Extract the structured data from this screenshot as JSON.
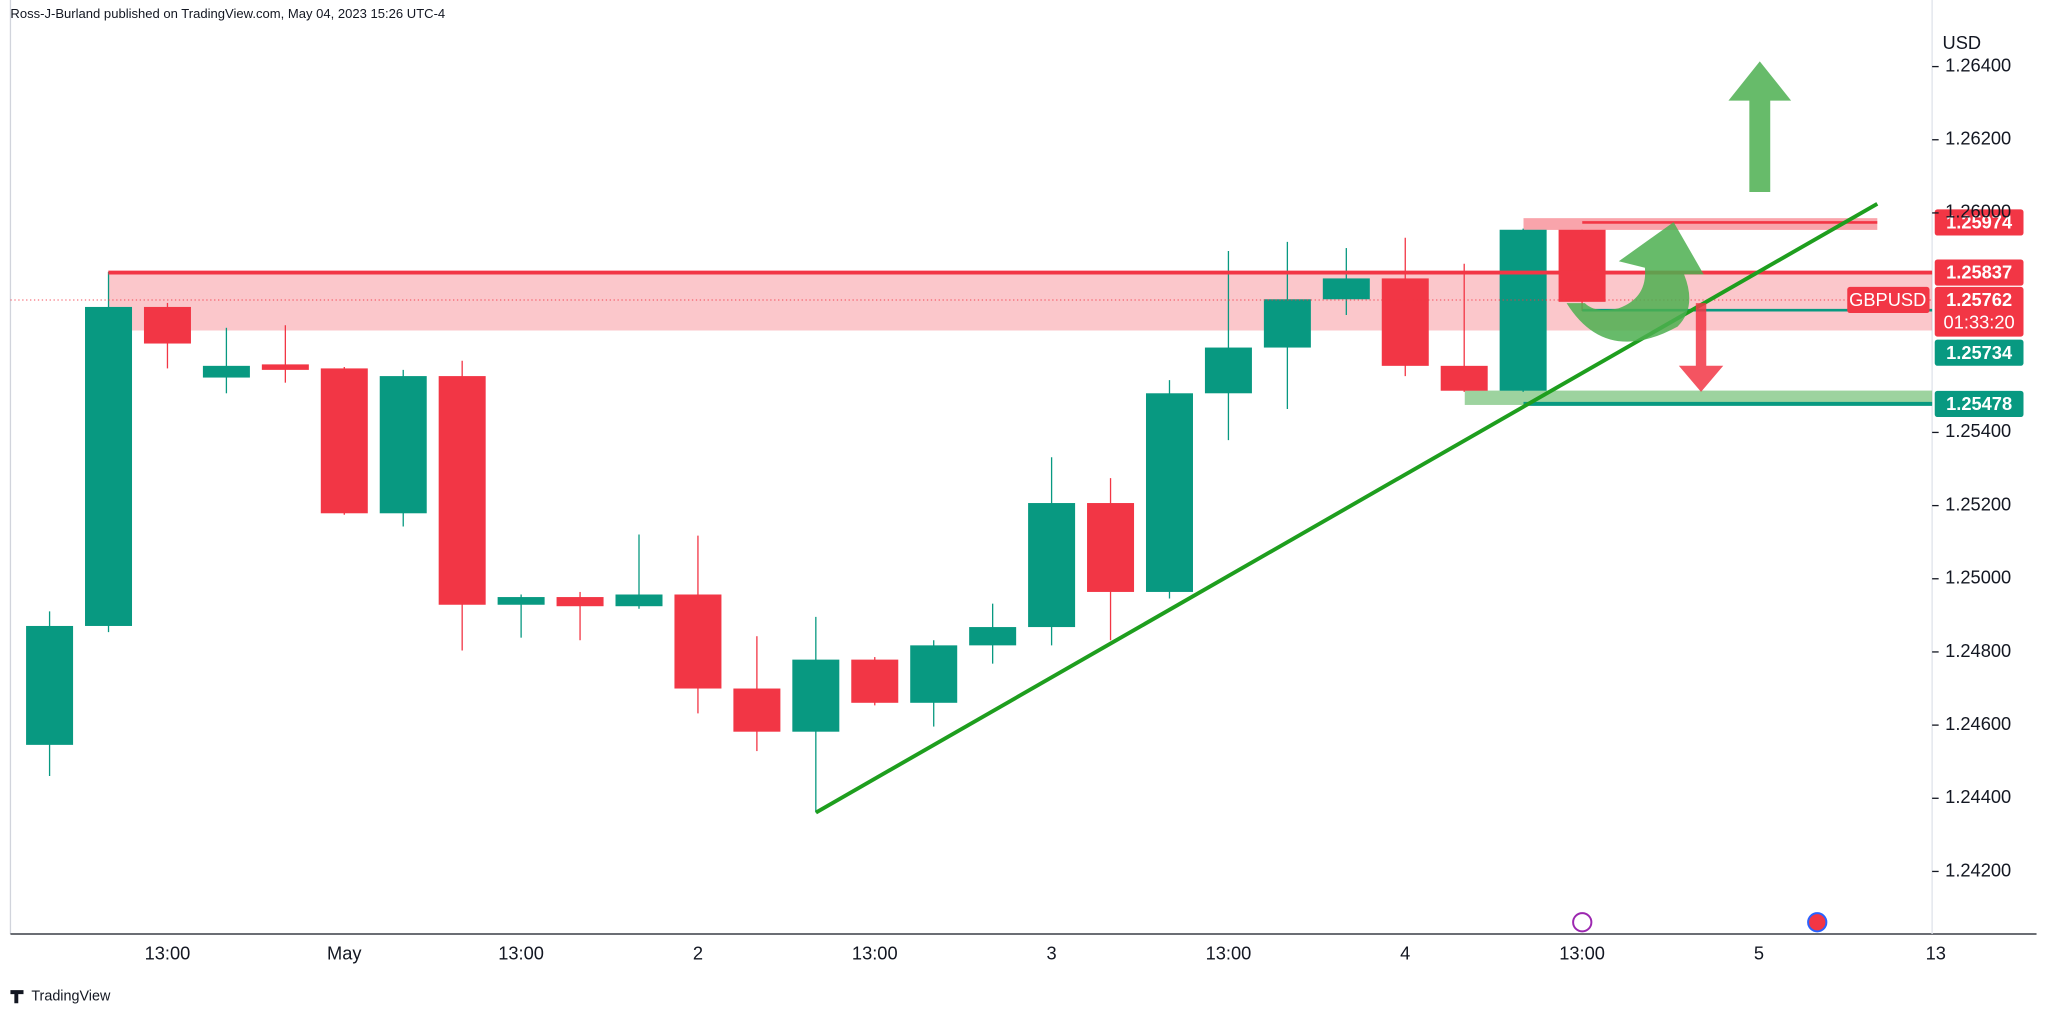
{
  "header": "Ross-J-Burland published on TradingView.com, May 04, 2023 15:26 UTC-4",
  "footer": "TradingView",
  "chart_data": {
    "type": "candlestick",
    "currency": "USD",
    "categories": [
      null,
      null,
      "13:00",
      null,
      null,
      "May",
      null,
      null,
      "13:00",
      null,
      null,
      "2",
      null,
      null,
      "13:00",
      null,
      null,
      "3",
      null,
      null,
      "13:00",
      null,
      null,
      "4",
      null,
      null,
      "13:00",
      null,
      null,
      "5",
      null,
      null,
      "13"
    ],
    "open": [
      1.24546,
      1.24871,
      1.25743,
      1.2555,
      1.25586,
      1.25575,
      1.25179,
      1.25554,
      1.24929,
      1.2495,
      1.24925,
      1.24957,
      1.247,
      1.24582,
      1.24779,
      1.24661,
      1.24818,
      1.24868,
      1.25207,
      1.24964,
      1.25507,
      1.25632,
      1.25764,
      1.25821,
      1.25582,
      1.25514,
      1.25954,
      null,
      null,
      null,
      null,
      null,
      null
    ],
    "high": [
      1.24911,
      1.25839,
      1.25754,
      1.25686,
      1.25693,
      1.25579,
      1.25571,
      1.25596,
      1.24957,
      1.24964,
      1.25121,
      1.25118,
      1.24843,
      1.24896,
      1.24786,
      1.24832,
      1.24932,
      1.25332,
      1.25275,
      1.25543,
      1.25896,
      1.25921,
      1.25904,
      1.25932,
      1.25861,
      1.25957,
      1.25954,
      null,
      null,
      null,
      null,
      null,
      null
    ],
    "low": [
      1.24461,
      1.24854,
      1.25575,
      1.25507,
      1.25536,
      1.25175,
      1.25143,
      1.24804,
      1.24839,
      1.24832,
      1.24918,
      1.24632,
      1.24529,
      1.24361,
      1.24654,
      1.24596,
      1.24768,
      1.24818,
      1.24832,
      1.24946,
      1.25379,
      1.25464,
      1.25721,
      1.25554,
      1.25511,
      1.25511,
      1.25732,
      null,
      null,
      null,
      null,
      null,
      null
    ],
    "close": [
      1.24871,
      1.25743,
      1.25643,
      1.25582,
      1.25571,
      1.25179,
      1.25554,
      1.24929,
      1.2495,
      1.24925,
      1.24957,
      1.247,
      1.24582,
      1.24779,
      1.24661,
      1.24818,
      1.24868,
      1.25207,
      1.24964,
      1.25507,
      1.25632,
      1.25764,
      1.25821,
      1.25582,
      1.25514,
      1.25954,
      1.25757,
      null,
      null,
      null,
      null,
      null,
      null
    ],
    "up_color": "#089981",
    "down_color": "#f23645",
    "ylim": [
      1.24029,
      1.26582
    ],
    "yticks": [
      {
        "value": 1.242,
        "label": "1.24200"
      },
      {
        "value": 1.244,
        "label": "1.24400"
      },
      {
        "value": 1.246,
        "label": "1.24600"
      },
      {
        "value": 1.248,
        "label": "1.24800"
      },
      {
        "value": 1.25,
        "label": "1.25000"
      },
      {
        "value": 1.252,
        "label": "1.25200"
      },
      {
        "value": 1.254,
        "label": "1.25400"
      },
      {
        "value": 1.26,
        "label": "1.26000"
      },
      {
        "value": 1.262,
        "label": "1.26200"
      },
      {
        "value": 1.264,
        "label": "1.26400"
      }
    ],
    "levels": [
      {
        "value": 1.25974,
        "color": "#f23645"
      },
      {
        "value": 1.25837,
        "color": "#f23645"
      },
      {
        "value": 1.25734,
        "color": "#089981"
      },
      {
        "value": 1.25478,
        "color": "#089981"
      }
    ],
    "current": {
      "symbol": "GBPUSD",
      "value": 1.25762,
      "countdown": "01:33:20",
      "color": "#f23645"
    }
  }
}
